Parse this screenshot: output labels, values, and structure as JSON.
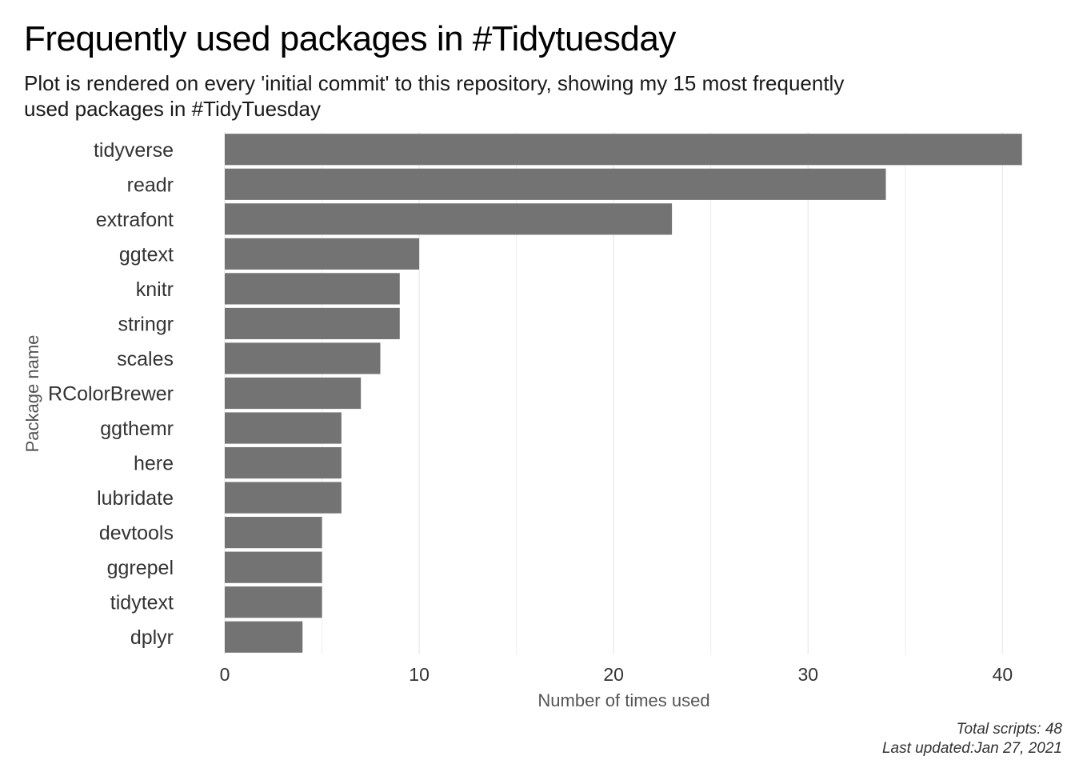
{
  "title": "Frequently used packages in #Tidytuesday",
  "subtitle": "Plot is rendered on every 'initial commit' to this repository, showing my 15 most frequently used packages in #TidyTuesday",
  "caption": {
    "line1": "Total scripts: 48",
    "line2": "Last updated:Jan 27, 2021"
  },
  "colors": {
    "bar": "#737373",
    "grid": "#ebebeb",
    "label": "#333333",
    "axis_title": "#555555"
  },
  "chart_data": {
    "type": "bar",
    "orientation": "horizontal",
    "categories": [
      "tidyverse",
      "readr",
      "extrafont",
      "ggtext",
      "knitr",
      "stringr",
      "scales",
      "RColorBrewer",
      "ggthemr",
      "here",
      "lubridate",
      "devtools",
      "ggrepel",
      "tidytext",
      "dplyr"
    ],
    "values": [
      41,
      34,
      23,
      10,
      9,
      9,
      8,
      7,
      6,
      6,
      6,
      5,
      5,
      5,
      4
    ],
    "xlabel": "Number of times used",
    "ylabel": "Package name",
    "xlim": [
      0,
      42
    ],
    "xticks": [
      0,
      10,
      20,
      30,
      40
    ],
    "grid": true
  }
}
